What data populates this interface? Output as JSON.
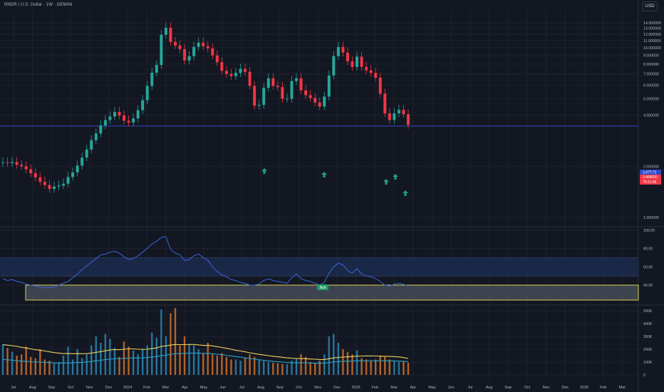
{
  "header": {
    "title": "RNDR / U.S. Dollar · 1W · GEMINI",
    "currency": "USD"
  },
  "colors": {
    "background": "#131722",
    "grid": "#1e222d",
    "up": "#26a69a",
    "down": "#f23645",
    "support_line": "#3149c9",
    "rsi_line": "#3b63e0",
    "rsi_band": "#1e2f54",
    "bull_box": "#d7d04f",
    "volume_ma_slow": "#f0d25a",
    "volume_ma_fast": "#27a3c7",
    "arrow": "#1f9e7a"
  },
  "chart_data": [
    {
      "type": "candlestick",
      "y_axis": {
        "scale": "log",
        "ticks": [
          "14.000000",
          "13.000000",
          "12.000000",
          "11.000000",
          "10.000000",
          "9.000000",
          "8.000000",
          "7.000000",
          "6.000000",
          "5.000000",
          "4.000000",
          "2.000000",
          "1.000000"
        ]
      },
      "x_axis": {
        "tick_labels": [
          "Jul",
          "Aug",
          "Sep",
          "Oct",
          "Nov",
          "Dec",
          "2024",
          "Feb",
          "Mar",
          "Apr",
          "May",
          "Jun",
          "Jul",
          "Aug",
          "Sep",
          "Oct",
          "Nov",
          "Dec",
          "2025",
          "Feb",
          "Mar",
          "Apr",
          "May",
          "Jun",
          "Jul",
          "Aug",
          "Sep",
          "Oct",
          "Nov",
          "Dec",
          "2026",
          "Feb",
          "Mar"
        ]
      },
      "support_level": 3.45,
      "price_labels": [
        "3.4??.?1",
        "3.468000",
        "?0:21:06"
      ],
      "close": [
        2.11,
        2.09,
        2.12,
        2.04,
        2.0,
        1.92,
        1.82,
        1.72,
        1.62,
        1.55,
        1.47,
        1.52,
        1.54,
        1.58,
        1.73,
        1.84,
        2.02,
        2.25,
        2.51,
        2.85,
        3.12,
        3.48,
        3.74,
        3.93,
        4.18,
        3.98,
        3.71,
        3.62,
        3.83,
        4.28,
        4.9,
        5.95,
        7.12,
        7.9,
        11.9,
        13.1,
        10.8,
        10.3,
        9.8,
        8.4,
        8.9,
        10.1,
        10.7,
        10.2,
        9.9,
        9.0,
        8.2,
        7.3,
        7.0,
        6.8,
        7.1,
        7.5,
        7.2,
        5.95,
        4.55,
        4.6,
        5.8,
        6.6,
        5.95,
        5.85,
        5.0,
        5.0,
        6.35,
        6.6,
        5.6,
        5.25,
        5.05,
        4.75,
        4.5,
        5.15,
        6.85,
        8.9,
        10.1,
        9.35,
        8.3,
        7.7,
        8.85,
        7.7,
        7.35,
        7.1,
        6.65,
        5.35,
        4.1,
        3.75,
        4.1,
        4.3,
        4.05,
        3.5
      ],
      "indicators": [
        {
          "name": "RSI",
          "y_ticks": [
            "100.00",
            "80.00",
            "60.00",
            "40.00"
          ],
          "band": [
            50,
            70
          ],
          "bull_threshold": 40,
          "bull_label": "Bull",
          "values": [
            47,
            45,
            46,
            44,
            43,
            41,
            40,
            39,
            38,
            37,
            37,
            38,
            40,
            42,
            44,
            48,
            52,
            57,
            61,
            65,
            69,
            73,
            74,
            76,
            77,
            75,
            71,
            68,
            69,
            72,
            76,
            80,
            85,
            88,
            92,
            93,
            79,
            75,
            73,
            67,
            68,
            72,
            74,
            70,
            67,
            60,
            55,
            51,
            49,
            46,
            45,
            43,
            42,
            40,
            40,
            41,
            45,
            47,
            45,
            44,
            43,
            42,
            48,
            52,
            47,
            45,
            44,
            42,
            40,
            43,
            53,
            60,
            64,
            62,
            56,
            53,
            58,
            52,
            50,
            49,
            47,
            44,
            40,
            39,
            41,
            42,
            41,
            39
          ]
        },
        {
          "name": "Volume",
          "y_ticks": [
            "500K",
            "400K",
            "300K",
            "200K",
            "100K",
            "0"
          ],
          "ylim": [
            0,
            520000
          ],
          "values": [
            240000,
            210000,
            180000,
            150000,
            160000,
            220000,
            140000,
            130000,
            200000,
            120000,
            110000,
            90000,
            100000,
            150000,
            220000,
            120000,
            200000,
            130000,
            160000,
            230000,
            300000,
            250000,
            320000,
            280000,
            210000,
            140000,
            260000,
            220000,
            190000,
            160000,
            200000,
            230000,
            330000,
            290000,
            510000,
            300000,
            480000,
            520000,
            230000,
            300000,
            240000,
            230000,
            200000,
            170000,
            250000,
            160000,
            150000,
            170000,
            140000,
            120000,
            120000,
            110000,
            130000,
            160000,
            140000,
            120000,
            110000,
            100000,
            95000,
            90000,
            85000,
            85000,
            110000,
            130000,
            160000,
            140000,
            100000,
            90000,
            110000,
            160000,
            300000,
            320000,
            250000,
            200000,
            180000,
            160000,
            190000,
            130000,
            120000,
            110000,
            120000,
            150000,
            140000,
            120000,
            110000,
            100000,
            105000,
            95000
          ],
          "ma_slow": [
            235000,
            232000,
            228000,
            222000,
            215000,
            210000,
            203000,
            196000,
            192000,
            186000,
            180000,
            174000,
            170000,
            166000,
            167000,
            165000,
            166000,
            165000,
            166000,
            170000,
            176000,
            181000,
            188000,
            194000,
            198000,
            196000,
            200000,
            203000,
            203000,
            200000,
            199000,
            200000,
            206000,
            210000,
            222000,
            226000,
            232000,
            237000,
            236000,
            236000,
            237000,
            237000,
            234000,
            230000,
            230000,
            226000,
            220000,
            214000,
            207000,
            200000,
            192000,
            186000,
            180000,
            172000,
            166000,
            160000,
            155000,
            150000,
            145000,
            141000,
            137000,
            133000,
            130000,
            128000,
            127000,
            126000,
            124000,
            122000,
            120000,
            120000,
            126000,
            132000,
            136000,
            139000,
            141000,
            143000,
            146000,
            147000,
            148000,
            148000,
            147000,
            146000,
            145000,
            144000,
            143000,
            140000,
            135000,
            128000
          ],
          "ma_fast": [
            120000,
            118000,
            115000,
            111000,
            108000,
            106000,
            103000,
            101000,
            100000,
            98000,
            96000,
            94000,
            92000,
            92000,
            93000,
            94000,
            96000,
            98000,
            101000,
            105000,
            110000,
            114000,
            119000,
            123000,
            126000,
            127000,
            129000,
            131000,
            132000,
            132000,
            133000,
            135000,
            139000,
            143000,
            150000,
            154000,
            160000,
            165000,
            166000,
            168000,
            169000,
            170000,
            170000,
            168000,
            168000,
            165000,
            161000,
            157000,
            153000,
            148000,
            143000,
            138000,
            133000,
            128000,
            123000,
            118000,
            114000,
            110000,
            106000,
            103000,
            100000,
            97000,
            95000,
            94000,
            94000,
            94000,
            93000,
            92000,
            91000,
            91000,
            96000,
            101000,
            104000,
            106000,
            107000,
            108000,
            110000,
            110000,
            110000,
            110000,
            110000,
            110000,
            110000,
            110000,
            109000,
            108000,
            106000,
            103000
          ]
        }
      ]
    }
  ]
}
